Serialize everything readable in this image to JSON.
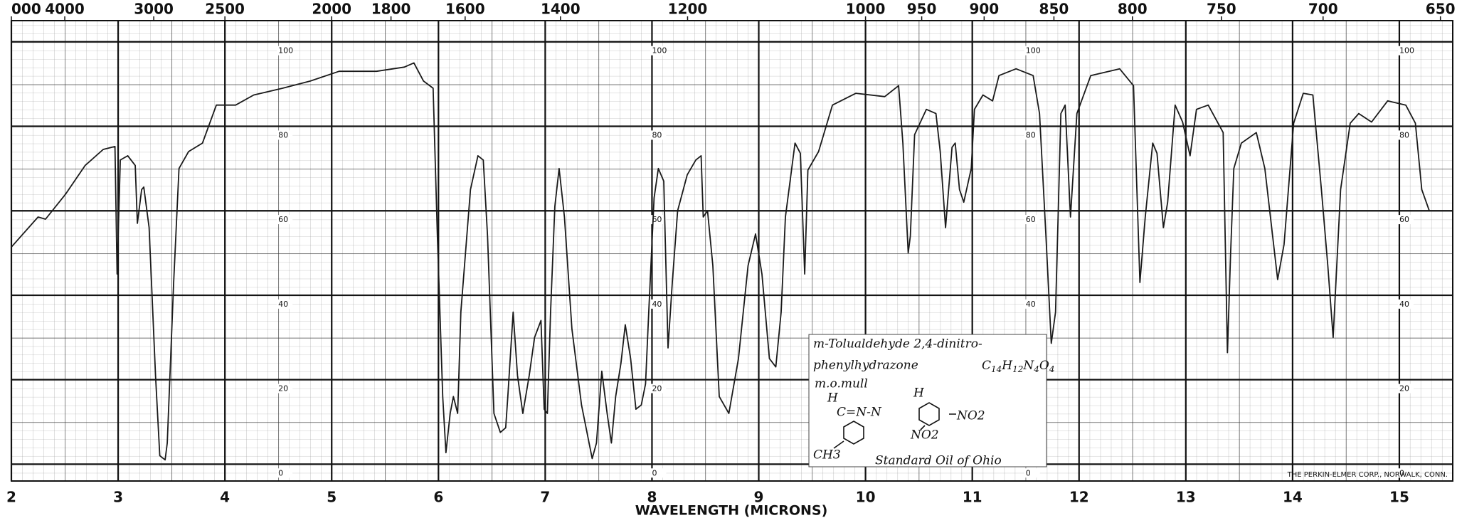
{
  "chart_data": {
    "type": "line",
    "x_label": "WAVELENGTH (MICRONS)",
    "xlim": [
      2,
      15.5
    ],
    "xticks": [
      2,
      3,
      4,
      5,
      6,
      7,
      8,
      9,
      10,
      11,
      12,
      13,
      14,
      15
    ],
    "top_ticks": [
      {
        "value": 5000,
        "label": "000"
      },
      4000,
      3000,
      2500,
      2000,
      1800,
      1600,
      1400,
      1200,
      1000,
      950,
      900,
      850,
      800,
      750,
      700,
      650
    ],
    "ylim": [
      -4,
      105
    ],
    "yticks": [
      0,
      20,
      40,
      60,
      80,
      100
    ],
    "grid": true,
    "color": "#1a1a1a",
    "x": [
      2.0,
      2.25,
      2.32,
      2.51,
      2.69,
      2.86,
      2.97,
      2.99,
      3.02,
      3.09,
      3.16,
      3.18,
      3.22,
      3.24,
      3.29,
      3.35,
      3.39,
      3.44,
      3.46,
      3.52,
      3.57,
      3.66,
      3.79,
      3.92,
      4.1,
      4.27,
      4.54,
      4.8,
      5.07,
      5.42,
      5.68,
      5.77,
      5.86,
      5.95,
      5.99,
      6.04,
      6.07,
      6.11,
      6.14,
      6.18,
      6.21,
      6.3,
      6.37,
      6.42,
      6.46,
      6.52,
      6.58,
      6.63,
      6.65,
      6.7,
      6.74,
      6.79,
      6.85,
      6.9,
      6.96,
      6.99,
      7.02,
      7.05,
      7.09,
      7.13,
      7.18,
      7.25,
      7.34,
      7.44,
      7.48,
      7.53,
      7.58,
      7.62,
      7.66,
      7.71,
      7.75,
      7.8,
      7.85,
      7.9,
      7.94,
      7.97,
      8.02,
      8.06,
      8.11,
      8.15,
      8.19,
      8.24,
      8.33,
      8.41,
      8.46,
      8.48,
      8.52,
      8.57,
      8.63,
      8.72,
      8.81,
      8.9,
      8.97,
      9.03,
      9.1,
      9.16,
      9.21,
      9.25,
      9.34,
      9.39,
      9.43,
      9.46,
      9.56,
      9.69,
      9.91,
      10.18,
      10.31,
      10.35,
      10.4,
      10.42,
      10.46,
      10.57,
      10.66,
      10.7,
      10.75,
      10.81,
      10.84,
      10.88,
      10.92,
      10.99,
      11.02,
      11.1,
      11.19,
      11.25,
      11.41,
      11.57,
      11.63,
      11.69,
      11.74,
      11.78,
      11.83,
      11.87,
      11.92,
      11.98,
      12.11,
      12.38,
      12.51,
      12.57,
      12.62,
      12.69,
      12.73,
      12.79,
      12.83,
      12.9,
      12.97,
      13.04,
      13.1,
      13.21,
      13.35,
      13.39,
      13.42,
      13.45,
      13.52,
      13.66,
      13.74,
      13.86,
      13.92,
      14.01,
      14.1,
      14.19,
      14.27,
      14.33,
      14.38,
      14.45,
      14.54,
      14.62,
      14.74,
      14.89,
      15.06,
      15.15,
      15.21,
      15.28
    ],
    "values": [
      51.4,
      58.5,
      58,
      64,
      70.7,
      74.5,
      75.2,
      45,
      72,
      73,
      70.7,
      57,
      65,
      65.6,
      56,
      21,
      2,
      1,
      5,
      43,
      70,
      74,
      76,
      85,
      85,
      87.4,
      89,
      90.7,
      93,
      93,
      94,
      95,
      90.7,
      89,
      54,
      16,
      2.7,
      12,
      16,
      12,
      36,
      65,
      73,
      72,
      54,
      12,
      7.5,
      8.6,
      16,
      36,
      21,
      12,
      21,
      30,
      34,
      13,
      12,
      36,
      61,
      70,
      58.5,
      32,
      14,
      1.3,
      5,
      22,
      12,
      5,
      16,
      24,
      33,
      25,
      13,
      14,
      19,
      36,
      63,
      70,
      67,
      27.5,
      43,
      60,
      68.5,
      72,
      73,
      58.5,
      60,
      47,
      16,
      12,
      25,
      47,
      54.5,
      45,
      25,
      23,
      36,
      58.5,
      76,
      73.6,
      45,
      69.6,
      74,
      85,
      87.8,
      87,
      89.6,
      76,
      50,
      54,
      78,
      84,
      83,
      74,
      56,
      75,
      76,
      65,
      62,
      70,
      84,
      87.4,
      86,
      92,
      93.6,
      92,
      83,
      54,
      28.6,
      36,
      83,
      85,
      58.5,
      83,
      92,
      93.6,
      89.6,
      43,
      58.5,
      76,
      73.6,
      56,
      62,
      85,
      81,
      73,
      84,
      85,
      78.5,
      26.4,
      50,
      70,
      76,
      78.5,
      70,
      43.7,
      52,
      80.7,
      87.8,
      87.4,
      65,
      47,
      30,
      65,
      80.7,
      83,
      81,
      86,
      85,
      80.7,
      65,
      60
    ],
    "annotation": {
      "name_line1": "m-Tolualdehyde 2,4-dinitro-",
      "name_line2": "phenylhydrazone",
      "formula": "C14H12N4O4",
      "medium": "m.o.mull",
      "structure_labels": [
        "H",
        "C=N-N",
        "H",
        "NO2",
        "NO2",
        "CH3"
      ],
      "source": "Standard Oil of Ohio"
    },
    "maker": "THE PERKIN-ELMER CORP., NORWALK, CONN."
  }
}
